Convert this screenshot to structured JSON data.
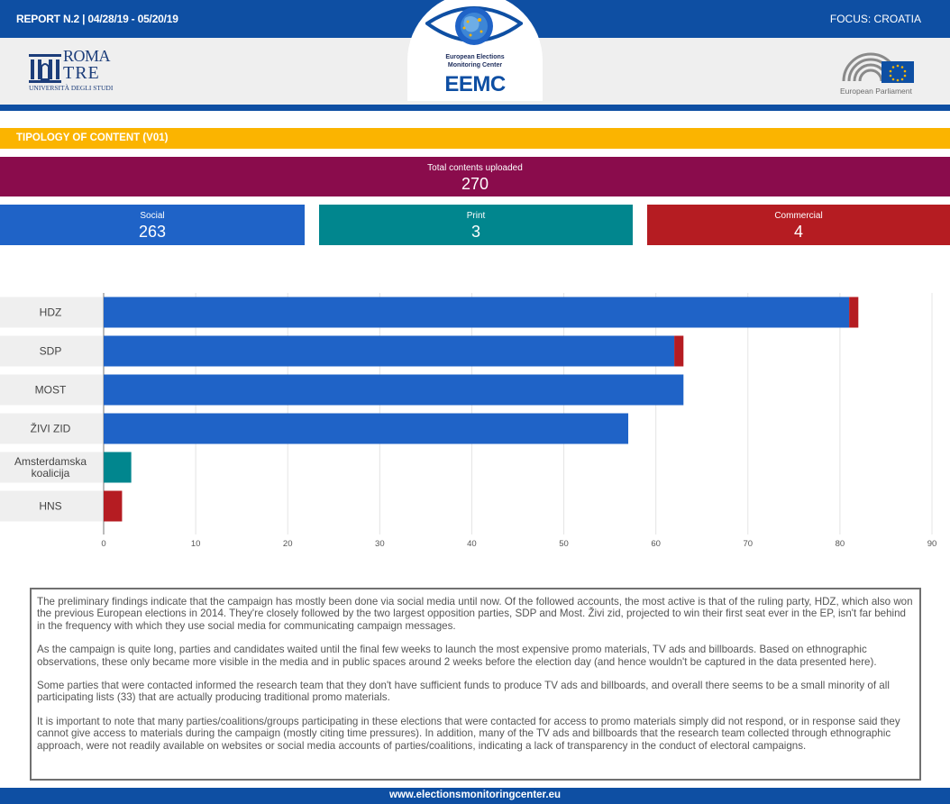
{
  "header": {
    "report": "REPORT N.2 | 04/28/19 - 05/20/19",
    "focus": "FOCUS: CROATIA"
  },
  "logos": {
    "roma_line1": "ROMA",
    "roma_line2": "TRE",
    "roma_line3": "UNIVERSITÀ DEGLI STUDI",
    "eemc_line1": "European Elections",
    "eemc_line2": "Monitoring Center",
    "eemc_name": "EEMC",
    "ep_label": "European Parliament"
  },
  "section": {
    "title": "TIPOLOGY OF CONTENT (V01)"
  },
  "kpis": {
    "total": {
      "label": "Total contents uploaded",
      "value": "270"
    },
    "social": {
      "label": "Social",
      "value": "263"
    },
    "print": {
      "label": "Print",
      "value": "3"
    },
    "commercial": {
      "label": "Commercial",
      "value": "4"
    }
  },
  "chart_data": {
    "type": "bar",
    "orientation": "horizontal",
    "stacked": true,
    "categories": [
      "HDZ",
      "SDP",
      "MOST",
      "ŽIVI ZID",
      "Amsterdamska koalicija",
      "HNS"
    ],
    "series": [
      {
        "color": "#1f63c7",
        "values": [
          81,
          62,
          63,
          57,
          0,
          0
        ]
      },
      {
        "color": "#01868e",
        "values": [
          0,
          0,
          0,
          0,
          3,
          0
        ]
      },
      {
        "color": "#b51c22",
        "values": [
          1,
          1,
          0,
          0,
          0,
          2
        ]
      }
    ],
    "xlim": [
      0,
      90
    ],
    "xticks": [
      "0",
      "10",
      "20",
      "30",
      "40",
      "50",
      "60",
      "70",
      "80",
      "90"
    ],
    "grid": true
  },
  "body": {
    "p1": "The preliminary findings indicate that the campaign has mostly been done via social media until now. Of the followed accounts, the most active is that of the ruling party, HDZ, which also won the previous European elections in 2014. They're closely followed by the two largest opposition parties, SDP and Most. Živi zid, projected to win their first seat ever in the EP, isn't far behind in the frequency with which they use social media for communicating campaign messages.",
    "p2": "As the campaign is quite long, parties and candidates waited until the final few weeks to launch the most expensive promo materials, TV ads and billboards.  Based on ethnographic observations, these only became more visible in the media and in public spaces around 2 weeks before the election day (and hence wouldn't be captured in the data presented here).",
    "p3": "Some parties that were contacted informed the research team that they don't have sufficient funds to produce TV ads and billboards, and overall there seems to be a small minority of all participating lists (33) that are actually producing traditional promo materials.",
    "p4": "It is important to note that many parties/coalitions/groups participating in these elections that were contacted for access to promo materials simply did not respond, or in response said they cannot give access to materials during the campaign (mostly citing time pressures). In addition, many of the TV ads and billboards that the research team collected through ethnographic approach, were not readily available on websites or social media accounts of parties/coalitions, indicating a lack of transparency in the conduct of electoral campaigns."
  },
  "footer": {
    "url": "www.electionsmonitoringcenter.eu"
  }
}
